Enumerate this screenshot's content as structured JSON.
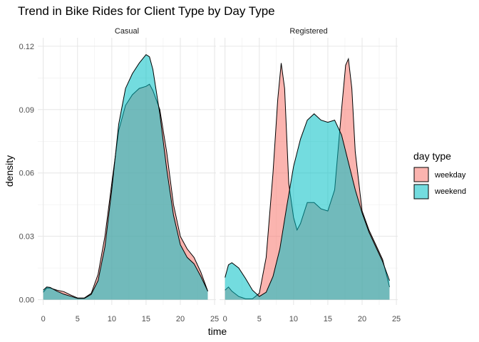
{
  "chart_data": {
    "type": "area",
    "title": "Trend in Bike Rides for Client Type by Day Type",
    "xlabel": "time",
    "ylabel": "density",
    "xlim": [
      -0.8,
      25.2
    ],
    "ylim": [
      -0.0025,
      0.124
    ],
    "x_ticks": [
      0,
      5,
      10,
      15,
      20,
      25
    ],
    "y_ticks": [
      0.0,
      0.03,
      0.06,
      0.09,
      0.12
    ],
    "y_tick_labels": [
      "0.00",
      "0.03",
      "0.06",
      "0.09",
      "0.12"
    ],
    "grid": true,
    "legend": {
      "title": "day type",
      "placement": "right",
      "entries": [
        {
          "name": "weekday",
          "color": "#F8766D"
        },
        {
          "name": "weekend",
          "color": "#00BFC4"
        }
      ]
    },
    "panels": [
      {
        "name": "Casual",
        "series": [
          {
            "name": "weekday",
            "color": "#F8766D",
            "points": [
              [
                0,
                0.0035
              ],
              [
                0.5,
                0.0055
              ],
              [
                1,
                0.0055
              ],
              [
                2,
                0.0045
              ],
              [
                3,
                0.0038
              ],
              [
                4,
                0.0022
              ],
              [
                5,
                0.0008
              ],
              [
                6,
                0.0008
              ],
              [
                7,
                0.003
              ],
              [
                8,
                0.012
              ],
              [
                9,
                0.03
              ],
              [
                10,
                0.055
              ],
              [
                11,
                0.08
              ],
              [
                12,
                0.092
              ],
              [
                13,
                0.097
              ],
              [
                14,
                0.1
              ],
              [
                15,
                0.101
              ],
              [
                15.5,
                0.102
              ],
              [
                16,
                0.099
              ],
              [
                17,
                0.09
              ],
              [
                18,
                0.07
              ],
              [
                19,
                0.045
              ],
              [
                20,
                0.03
              ],
              [
                21,
                0.024
              ],
              [
                22,
                0.02
              ],
              [
                23,
                0.013
              ],
              [
                24,
                0.004
              ]
            ]
          },
          {
            "name": "weekend",
            "color": "#00BFC4",
            "points": [
              [
                0,
                0.0045
              ],
              [
                0.5,
                0.006
              ],
              [
                1,
                0.0058
              ],
              [
                2,
                0.004
              ],
              [
                3,
                0.0026
              ],
              [
                4,
                0.0016
              ],
              [
                5,
                0.0006
              ],
              [
                6,
                0.0006
              ],
              [
                7,
                0.0025
              ],
              [
                8,
                0.009
              ],
              [
                9,
                0.025
              ],
              [
                10,
                0.052
              ],
              [
                11,
                0.083
              ],
              [
                12,
                0.1
              ],
              [
                13,
                0.107
              ],
              [
                14,
                0.112
              ],
              [
                15,
                0.116
              ],
              [
                15.5,
                0.115
              ],
              [
                16,
                0.109
              ],
              [
                17,
                0.088
              ],
              [
                18,
                0.062
              ],
              [
                19,
                0.04
              ],
              [
                20,
                0.026
              ],
              [
                21,
                0.02
              ],
              [
                22,
                0.017
              ],
              [
                23,
                0.011
              ],
              [
                24,
                0.004
              ]
            ]
          }
        ]
      },
      {
        "name": "Registered",
        "series": [
          {
            "name": "weekday",
            "color": "#F8766D",
            "points": [
              [
                0,
                0.0045
              ],
              [
                0.5,
                0.006
              ],
              [
                1,
                0.004
              ],
              [
                2,
                0.0015
              ],
              [
                3,
                0.0004
              ],
              [
                4,
                0.0004
              ],
              [
                5,
                0.003
              ],
              [
                6,
                0.02
              ],
              [
                7,
                0.06
              ],
              [
                7.7,
                0.095
              ],
              [
                8.2,
                0.112
              ],
              [
                8.7,
                0.1
              ],
              [
                9.3,
                0.055
              ],
              [
                10,
                0.039
              ],
              [
                10.5,
                0.033
              ],
              [
                11,
                0.036
              ],
              [
                12,
                0.046
              ],
              [
                13,
                0.046
              ],
              [
                14,
                0.043
              ],
              [
                15,
                0.042
              ],
              [
                16,
                0.052
              ],
              [
                17,
                0.09
              ],
              [
                17.6,
                0.111
              ],
              [
                18,
                0.114
              ],
              [
                18.5,
                0.1
              ],
              [
                19,
                0.07
              ],
              [
                20,
                0.042
              ],
              [
                21,
                0.033
              ],
              [
                22,
                0.026
              ],
              [
                23,
                0.019
              ],
              [
                24,
                0.006
              ]
            ]
          },
          {
            "name": "weekend",
            "color": "#00BFC4",
            "points": [
              [
                0,
                0.0105
              ],
              [
                0.5,
                0.0165
              ],
              [
                1,
                0.0175
              ],
              [
                2,
                0.015
              ],
              [
                3,
                0.01
              ],
              [
                4,
                0.0045
              ],
              [
                5,
                0.0015
              ],
              [
                6,
                0.0035
              ],
              [
                7,
                0.011
              ],
              [
                8,
                0.024
              ],
              [
                9,
                0.044
              ],
              [
                10,
                0.063
              ],
              [
                11,
                0.076
              ],
              [
                12,
                0.085
              ],
              [
                13,
                0.088
              ],
              [
                14,
                0.085
              ],
              [
                15,
                0.084
              ],
              [
                16,
                0.085
              ],
              [
                17,
                0.078
              ],
              [
                18,
                0.065
              ],
              [
                19,
                0.052
              ],
              [
                20,
                0.041
              ],
              [
                21,
                0.032
              ],
              [
                22,
                0.025
              ],
              [
                23,
                0.018
              ],
              [
                24,
                0.009
              ]
            ]
          }
        ]
      }
    ]
  }
}
